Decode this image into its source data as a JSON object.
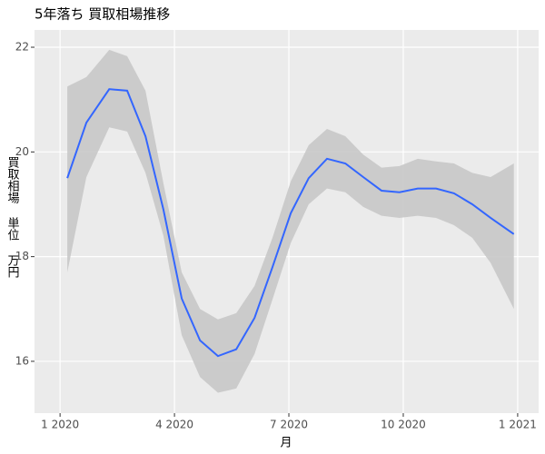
{
  "chart_data": {
    "type": "smooth",
    "title": "5年落ち 買取相場推移",
    "xlabel": "月",
    "ylabel": "買取相場 単位 万円",
    "x": [
      0.19,
      0.69,
      1.29,
      1.76,
      2.24,
      2.71,
      3.19,
      3.67,
      4.14,
      4.62,
      5.1,
      5.57,
      6.05,
      6.52,
      7.0,
      7.48,
      7.95,
      8.43,
      8.9,
      9.38,
      9.86,
      10.33,
      10.81,
      11.29,
      11.9
    ],
    "line": {
      "color": "#3366ff",
      "values": [
        19.5,
        20.56,
        21.2,
        21.17,
        20.3,
        18.9,
        17.2,
        16.4,
        16.1,
        16.23,
        16.83,
        17.8,
        18.83,
        19.5,
        19.87,
        19.78,
        19.52,
        19.26,
        19.23,
        19.3,
        19.3,
        19.21,
        19.0,
        18.74,
        18.43
      ]
    },
    "band": {
      "color": "#c8c8c8",
      "upper": [
        21.25,
        21.43,
        21.95,
        21.83,
        21.17,
        19.4,
        17.7,
        17.0,
        16.8,
        16.92,
        17.44,
        18.36,
        19.44,
        20.13,
        20.44,
        20.3,
        19.95,
        19.7,
        19.73,
        19.87,
        19.82,
        19.78,
        19.6,
        19.52,
        19.78
      ],
      "lower": [
        17.7,
        19.52,
        20.47,
        20.39,
        19.6,
        18.4,
        16.5,
        15.7,
        15.4,
        15.48,
        16.14,
        17.18,
        18.26,
        19.0,
        19.3,
        19.23,
        18.95,
        18.78,
        18.74,
        18.78,
        18.74,
        18.6,
        18.36,
        17.88,
        17.0
      ]
    },
    "xlim": [
      -0.67,
      12.55
    ],
    "xticks": [
      {
        "value": 0,
        "label": "1 2020"
      },
      {
        "value": 3,
        "label": "4 2020"
      },
      {
        "value": 6,
        "label": "7 2020"
      },
      {
        "value": 9,
        "label": "10 2020"
      },
      {
        "value": 12,
        "label": "1 2021"
      }
    ],
    "ylim": [
      15.01,
      22.33
    ],
    "yticks": [
      16,
      18,
      20,
      22
    ],
    "grid": true
  }
}
